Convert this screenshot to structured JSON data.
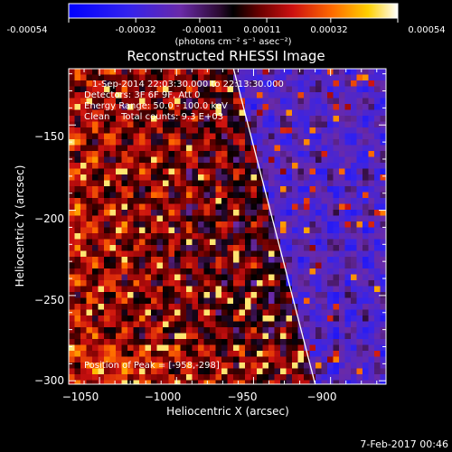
{
  "colorbar": {
    "tick_labels": [
      "-0.00054",
      "-0.00032",
      "-0.00011",
      "0.00011",
      "0.00032",
      "0.00054"
    ],
    "unit_label": "(photons cm⁻² s⁻¹ asec⁻²)",
    "range": [
      -0.00054,
      0.00054
    ]
  },
  "chart_data": {
    "type": "heatmap",
    "title": "Reconstructed RHESSI Image",
    "xlabel": "Heliocentric X (arcsec)",
    "ylabel": "Heliocentric Y (arcsec)",
    "xlim": [
      -1070,
      -864
    ],
    "ylim": [
      -302,
      -117
    ],
    "x_ticks": [
      -1050,
      -1000,
      -950,
      -900
    ],
    "x_tick_labels": [
      "−1050",
      "−1000",
      "−950",
      "−900"
    ],
    "y_ticks": [
      -300,
      -250,
      -200,
      -150
    ],
    "y_tick_labels": [
      "−300",
      "−250",
      "−200",
      "−150"
    ],
    "annotations": [
      "1-Sep-2014 22:03:30.000 to 22:13:30.000",
      "Detectors: 3F 6F 9F, Att 0",
      "Energy Range: 50.0 - 100.0 keV",
      "Clean    Total counts: 9.3 E+03",
      "Position of Peak = [-958,-298]"
    ],
    "limb_line": [
      [
        -963,
        -117
      ],
      [
        -910,
        -302
      ]
    ],
    "peak_position": [
      -958,
      -298
    ],
    "grid": false,
    "colormap": "blue-purple-black-red-orange-yellow-white"
  },
  "footer": {
    "timestamp": "7-Feb-2017 00:46"
  },
  "colors": {
    "background": "#000000",
    "foreground": "#ffffff",
    "negative_max": "#0000ff",
    "positive_max": "#ffffff"
  }
}
